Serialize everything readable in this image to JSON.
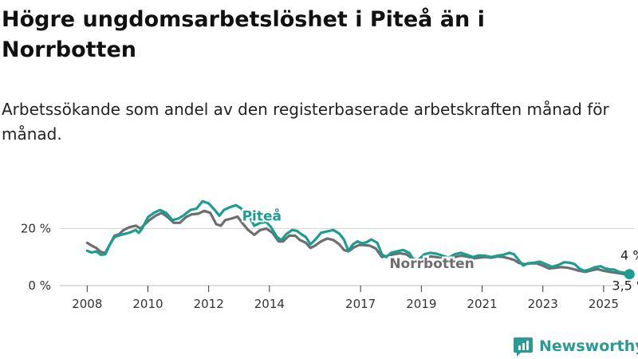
{
  "title": "Högre ungdomsarbetslöshet i Piteå än i Norrbotten",
  "subtitle": "Arbetssökande som andel av den registerbaserade arbetskraften månad för månad.",
  "brand": "Newsworthy",
  "colors": {
    "pitea": "#1a9e92",
    "norrbotten": "#6e6e6e",
    "grid": "#d6d6d6",
    "brand": "#2a9a94"
  },
  "chart_data": {
    "type": "line",
    "x_unit": "year",
    "xlim": [
      2007.1,
      2026.0
    ],
    "ylim": [
      0,
      33
    ],
    "yticks": [
      0,
      20
    ],
    "ytick_labels": [
      "0 %",
      "20 %"
    ],
    "xticks": [
      2008,
      2010,
      2012,
      2014,
      2017,
      2019,
      2021,
      2023,
      2025
    ],
    "xtick_labels": [
      "2008",
      "2010",
      "2012",
      "2014",
      "2017",
      "2019",
      "2021",
      "2023",
      "2025"
    ],
    "end_labels": {
      "pitea": "4 %",
      "norrbotten": "3,5 %"
    },
    "series": [
      {
        "key": "pitea",
        "name": "Piteå",
        "color": "#1a9e92",
        "points": [
          [
            2008.0,
            12.2
          ],
          [
            2008.15,
            11.6
          ],
          [
            2008.3,
            12.0
          ],
          [
            2008.45,
            10.8
          ],
          [
            2008.6,
            11.0
          ],
          [
            2008.75,
            14.5
          ],
          [
            2008.9,
            17.0
          ],
          [
            2009.05,
            17.6
          ],
          [
            2009.2,
            18.0
          ],
          [
            2009.4,
            18.6
          ],
          [
            2009.6,
            19.5
          ],
          [
            2009.7,
            18.5
          ],
          [
            2009.8,
            19.8
          ],
          [
            2010.0,
            24.0
          ],
          [
            2010.2,
            25.5
          ],
          [
            2010.4,
            26.5
          ],
          [
            2010.6,
            25.5
          ],
          [
            2010.8,
            23.0
          ],
          [
            2011.0,
            23.5
          ],
          [
            2011.2,
            24.8
          ],
          [
            2011.4,
            26.5
          ],
          [
            2011.6,
            27.0
          ],
          [
            2011.8,
            29.6
          ],
          [
            2012.0,
            28.8
          ],
          [
            2012.2,
            26.5
          ],
          [
            2012.35,
            24.5
          ],
          [
            2012.5,
            26.5
          ],
          [
            2012.7,
            27.5
          ],
          [
            2012.9,
            28.2
          ],
          [
            2013.05,
            27.2
          ],
          [
            2013.2,
            25.5
          ],
          [
            2013.35,
            24.0
          ],
          [
            2013.5,
            21.0
          ],
          [
            2013.7,
            22.0
          ],
          [
            2013.9,
            22.3
          ],
          [
            2014.05,
            20.5
          ],
          [
            2014.25,
            17.0
          ],
          [
            2014.4,
            16.0
          ],
          [
            2014.55,
            18.0
          ],
          [
            2014.75,
            19.5
          ],
          [
            2014.9,
            19.2
          ],
          [
            2015.05,
            18.0
          ],
          [
            2015.2,
            17.0
          ],
          [
            2015.35,
            14.5
          ],
          [
            2015.5,
            16.0
          ],
          [
            2015.7,
            18.5
          ],
          [
            2015.9,
            19.0
          ],
          [
            2016.1,
            19.5
          ],
          [
            2016.3,
            18.2
          ],
          [
            2016.45,
            16.2
          ],
          [
            2016.6,
            12.2
          ],
          [
            2016.75,
            14.5
          ],
          [
            2016.9,
            15.5
          ],
          [
            2017.05,
            14.8
          ],
          [
            2017.2,
            15.2
          ],
          [
            2017.35,
            16.2
          ],
          [
            2017.55,
            15.0
          ],
          [
            2017.7,
            11.0
          ],
          [
            2017.85,
            10.0
          ],
          [
            2018.0,
            11.5
          ],
          [
            2018.2,
            12.0
          ],
          [
            2018.4,
            12.5
          ],
          [
            2018.6,
            11.5
          ],
          [
            2018.75,
            9.0
          ],
          [
            2018.9,
            9.0
          ],
          [
            2019.1,
            11.0
          ],
          [
            2019.3,
            11.5
          ],
          [
            2019.5,
            11.2
          ],
          [
            2019.7,
            10.5
          ],
          [
            2019.9,
            9.8
          ],
          [
            2020.1,
            11.0
          ],
          [
            2020.3,
            11.5
          ],
          [
            2020.5,
            10.8
          ],
          [
            2020.7,
            10.0
          ],
          [
            2020.9,
            10.6
          ],
          [
            2021.1,
            10.5
          ],
          [
            2021.3,
            10.0
          ],
          [
            2021.5,
            10.5
          ],
          [
            2021.7,
            10.8
          ],
          [
            2021.9,
            11.5
          ],
          [
            2022.05,
            11.0
          ],
          [
            2022.2,
            9.0
          ],
          [
            2022.35,
            7.0
          ],
          [
            2022.5,
            7.8
          ],
          [
            2022.7,
            8.0
          ],
          [
            2022.9,
            8.4
          ],
          [
            2023.1,
            7.5
          ],
          [
            2023.3,
            6.6
          ],
          [
            2023.5,
            7.2
          ],
          [
            2023.7,
            8.2
          ],
          [
            2023.9,
            8.0
          ],
          [
            2024.05,
            7.5
          ],
          [
            2024.2,
            6.0
          ],
          [
            2024.35,
            5.2
          ],
          [
            2024.5,
            5.5
          ],
          [
            2024.7,
            6.4
          ],
          [
            2024.9,
            6.8
          ],
          [
            2025.05,
            6.0
          ],
          [
            2025.2,
            5.7
          ],
          [
            2025.35,
            5.6
          ],
          [
            2025.5,
            4.8
          ],
          [
            2025.7,
            4.5
          ],
          [
            2025.85,
            4.0
          ]
        ]
      },
      {
        "key": "norrbotten",
        "name": "Norrbotten",
        "color": "#6e6e6e",
        "points": [
          [
            2008.0,
            15.0
          ],
          [
            2008.15,
            14.0
          ],
          [
            2008.3,
            13.2
          ],
          [
            2008.45,
            11.8
          ],
          [
            2008.6,
            11.5
          ],
          [
            2008.75,
            14.5
          ],
          [
            2008.9,
            17.5
          ],
          [
            2009.05,
            18.0
          ],
          [
            2009.2,
            19.5
          ],
          [
            2009.4,
            20.5
          ],
          [
            2009.6,
            21.0
          ],
          [
            2009.75,
            20.0
          ],
          [
            2009.9,
            21.5
          ],
          [
            2010.05,
            23.0
          ],
          [
            2010.25,
            24.5
          ],
          [
            2010.45,
            25.5
          ],
          [
            2010.65,
            24.0
          ],
          [
            2010.85,
            22.0
          ],
          [
            2011.05,
            22.0
          ],
          [
            2011.25,
            24.0
          ],
          [
            2011.45,
            25.0
          ],
          [
            2011.65,
            25.2
          ],
          [
            2011.85,
            26.2
          ],
          [
            2012.05,
            25.5
          ],
          [
            2012.25,
            21.5
          ],
          [
            2012.4,
            21.0
          ],
          [
            2012.55,
            23.0
          ],
          [
            2012.75,
            23.5
          ],
          [
            2012.95,
            24.2
          ],
          [
            2013.1,
            22.0
          ],
          [
            2013.3,
            19.5
          ],
          [
            2013.5,
            17.8
          ],
          [
            2013.7,
            19.5
          ],
          [
            2013.9,
            20.0
          ],
          [
            2014.1,
            18.5
          ],
          [
            2014.3,
            15.5
          ],
          [
            2014.45,
            15.5
          ],
          [
            2014.65,
            17.5
          ],
          [
            2014.85,
            17.5
          ],
          [
            2015.0,
            16.0
          ],
          [
            2015.2,
            15.0
          ],
          [
            2015.35,
            13.2
          ],
          [
            2015.5,
            14.0
          ],
          [
            2015.7,
            15.5
          ],
          [
            2015.9,
            16.5
          ],
          [
            2016.1,
            16.0
          ],
          [
            2016.3,
            14.5
          ],
          [
            2016.45,
            12.5
          ],
          [
            2016.6,
            12.0
          ],
          [
            2016.8,
            13.5
          ],
          [
            2016.95,
            14.2
          ],
          [
            2017.1,
            14.2
          ],
          [
            2017.3,
            14.0
          ],
          [
            2017.5,
            13.0
          ],
          [
            2017.7,
            10.0
          ],
          [
            2017.9,
            10.5
          ],
          [
            2018.1,
            11.0
          ],
          [
            2018.3,
            11.3
          ],
          [
            2018.5,
            11.0
          ],
          [
            2018.7,
            9.5
          ],
          [
            2018.9,
            8.8
          ],
          [
            2019.1,
            9.5
          ],
          [
            2019.3,
            10.2
          ],
          [
            2019.5,
            10.0
          ],
          [
            2019.7,
            9.5
          ],
          [
            2019.9,
            9.2
          ],
          [
            2020.1,
            10.0
          ],
          [
            2020.3,
            10.5
          ],
          [
            2020.5,
            10.2
          ],
          [
            2020.7,
            9.5
          ],
          [
            2020.9,
            9.8
          ],
          [
            2021.1,
            10.0
          ],
          [
            2021.3,
            9.8
          ],
          [
            2021.5,
            10.2
          ],
          [
            2021.7,
            10.0
          ],
          [
            2021.9,
            9.5
          ],
          [
            2022.05,
            9.0
          ],
          [
            2022.2,
            8.0
          ],
          [
            2022.4,
            7.5
          ],
          [
            2022.6,
            7.8
          ],
          [
            2022.8,
            7.8
          ],
          [
            2023.0,
            7.0
          ],
          [
            2023.2,
            6.0
          ],
          [
            2023.4,
            6.2
          ],
          [
            2023.6,
            6.5
          ],
          [
            2023.8,
            6.3
          ],
          [
            2024.0,
            5.8
          ],
          [
            2024.2,
            5.2
          ],
          [
            2024.4,
            4.8
          ],
          [
            2024.6,
            5.3
          ],
          [
            2024.8,
            5.8
          ],
          [
            2025.0,
            5.2
          ],
          [
            2025.2,
            4.8
          ],
          [
            2025.4,
            4.5
          ],
          [
            2025.6,
            4.2
          ],
          [
            2025.85,
            3.5
          ]
        ]
      }
    ]
  }
}
